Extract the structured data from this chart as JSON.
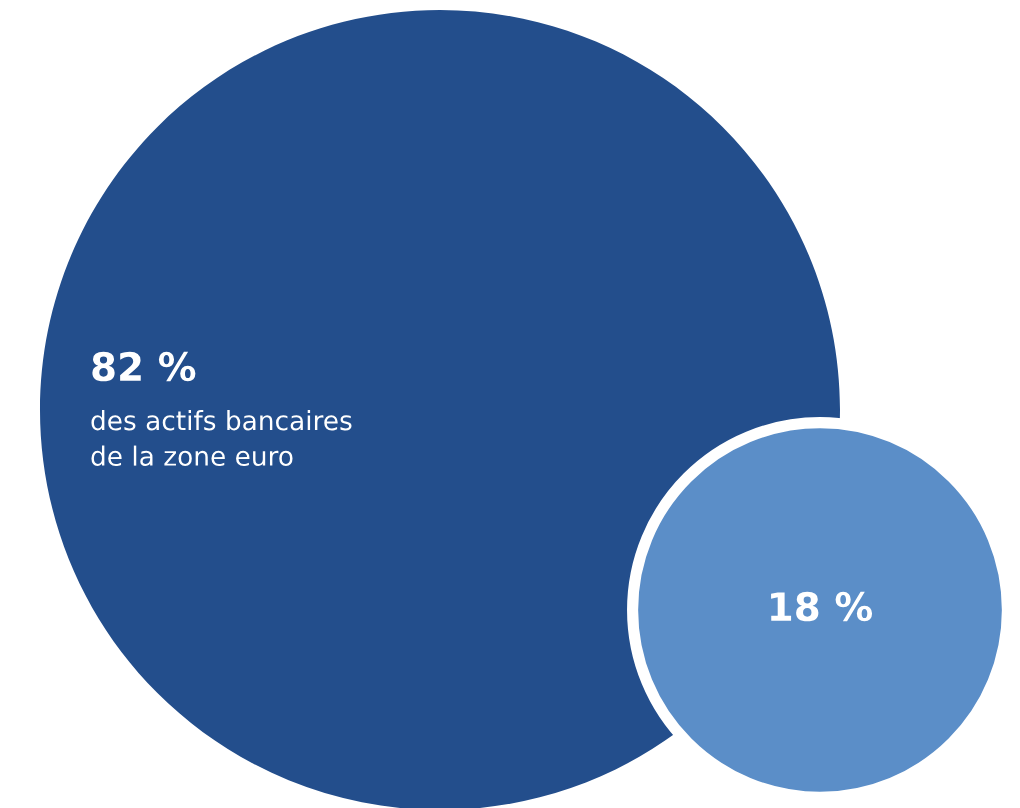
{
  "chart_data": {
    "type": "other",
    "categories": [
      "des actifs bancaires\nde la zone euro",
      null
    ],
    "values": [
      82,
      18
    ],
    "value_labels": [
      "82 %",
      "18 %"
    ],
    "colors": [
      "#234e8c",
      "#5b8ec8"
    ]
  }
}
